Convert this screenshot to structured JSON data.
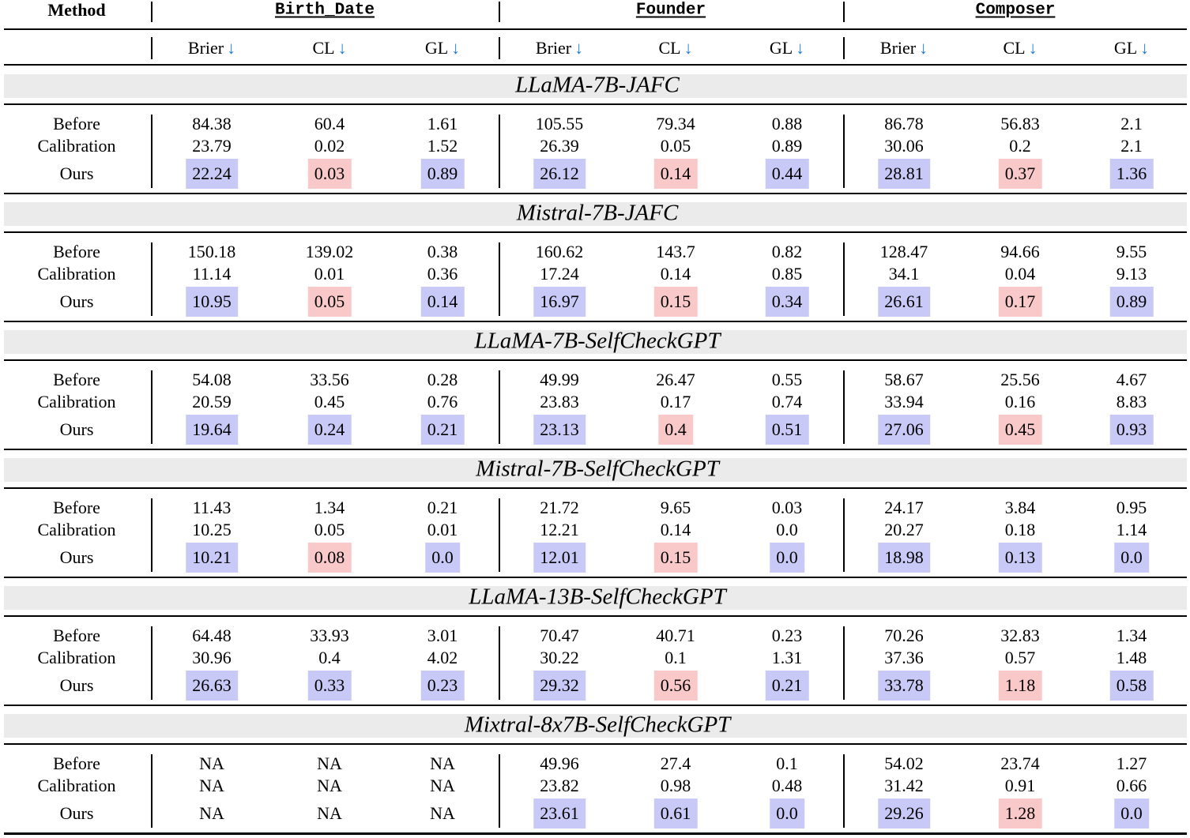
{
  "header": {
    "method_label": "Method",
    "datasets": [
      "Birth_Date",
      "Founder",
      "Composer"
    ],
    "metrics": [
      "Brier",
      "CL",
      "GL"
    ],
    "arrow": "↓"
  },
  "row_labels": {
    "before": "Before",
    "calibration": "Calibration",
    "ours": "Ours"
  },
  "colors": {
    "blue_highlight": "#c9c9f7",
    "pink_highlight": "#f9c9c9",
    "arrow": "#1f7bd6",
    "section_band": "#ebebeb"
  },
  "sections": [
    {
      "title": "LLaMA-7B-JAFC",
      "before": [
        "84.38",
        "60.4",
        "1.61",
        "105.55",
        "79.34",
        "0.88",
        "86.78",
        "56.83",
        "2.1"
      ],
      "calibration": [
        "23.79",
        "0.02",
        "1.52",
        "26.39",
        "0.05",
        "0.89",
        "30.06",
        "0.2",
        "2.1"
      ],
      "ours": [
        "22.24",
        "0.03",
        "0.89",
        "26.12",
        "0.14",
        "0.44",
        "28.81",
        "0.37",
        "1.36"
      ],
      "ours_highlight": [
        "blue",
        "pink",
        "blue",
        "blue",
        "pink",
        "blue",
        "blue",
        "pink",
        "blue"
      ]
    },
    {
      "title": "Mistral-7B-JAFC",
      "before": [
        "150.18",
        "139.02",
        "0.38",
        "160.62",
        "143.7",
        "0.82",
        "128.47",
        "94.66",
        "9.55"
      ],
      "calibration": [
        "11.14",
        "0.01",
        "0.36",
        "17.24",
        "0.14",
        "0.85",
        "34.1",
        "0.04",
        "9.13"
      ],
      "ours": [
        "10.95",
        "0.05",
        "0.14",
        "16.97",
        "0.15",
        "0.34",
        "26.61",
        "0.17",
        "0.89"
      ],
      "ours_highlight": [
        "blue",
        "pink",
        "blue",
        "blue",
        "pink",
        "blue",
        "blue",
        "pink",
        "blue"
      ]
    },
    {
      "title": "LLaMA-7B-SelfCheckGPT",
      "before": [
        "54.08",
        "33.56",
        "0.28",
        "49.99",
        "26.47",
        "0.55",
        "58.67",
        "25.56",
        "4.67"
      ],
      "calibration": [
        "20.59",
        "0.45",
        "0.76",
        "23.83",
        "0.17",
        "0.74",
        "33.94",
        "0.16",
        "8.83"
      ],
      "ours": [
        "19.64",
        "0.24",
        "0.21",
        "23.13",
        "0.4",
        "0.51",
        "27.06",
        "0.45",
        "0.93"
      ],
      "ours_highlight": [
        "blue",
        "blue",
        "blue",
        "blue",
        "pink",
        "blue",
        "blue",
        "pink",
        "blue"
      ]
    },
    {
      "title": "Mistral-7B-SelfCheckGPT",
      "before": [
        "11.43",
        "1.34",
        "0.21",
        "21.72",
        "9.65",
        "0.03",
        "24.17",
        "3.84",
        "0.95"
      ],
      "calibration": [
        "10.25",
        "0.05",
        "0.01",
        "12.21",
        "0.14",
        "0.0",
        "20.27",
        "0.18",
        "1.14"
      ],
      "ours": [
        "10.21",
        "0.08",
        "0.0",
        "12.01",
        "0.15",
        "0.0",
        "18.98",
        "0.13",
        "0.0"
      ],
      "ours_highlight": [
        "blue",
        "pink",
        "blue",
        "blue",
        "pink",
        "blue",
        "blue",
        "blue",
        "blue"
      ]
    },
    {
      "title": "LLaMA-13B-SelfCheckGPT",
      "before": [
        "64.48",
        "33.93",
        "3.01",
        "70.47",
        "40.71",
        "0.23",
        "70.26",
        "32.83",
        "1.34"
      ],
      "calibration": [
        "30.96",
        "0.4",
        "4.02",
        "30.22",
        "0.1",
        "1.31",
        "37.36",
        "0.57",
        "1.48"
      ],
      "ours": [
        "26.63",
        "0.33",
        "0.23",
        "29.32",
        "0.56",
        "0.21",
        "33.78",
        "1.18",
        "0.58"
      ],
      "ours_highlight": [
        "blue",
        "blue",
        "blue",
        "blue",
        "pink",
        "blue",
        "blue",
        "pink",
        "blue"
      ]
    },
    {
      "title": "Mixtral-8x7B-SelfCheckGPT",
      "before": [
        "NA",
        "NA",
        "NA",
        "49.96",
        "27.4",
        "0.1",
        "54.02",
        "23.74",
        "1.27"
      ],
      "calibration": [
        "NA",
        "NA",
        "NA",
        "23.82",
        "0.98",
        "0.48",
        "31.42",
        "0.91",
        "0.66"
      ],
      "ours": [
        "NA",
        "NA",
        "NA",
        "23.61",
        "0.61",
        "0.0",
        "29.26",
        "1.28",
        "0.0"
      ],
      "ours_highlight": [
        "none",
        "none",
        "none",
        "blue",
        "blue",
        "blue",
        "blue",
        "pink",
        "blue"
      ]
    }
  ]
}
